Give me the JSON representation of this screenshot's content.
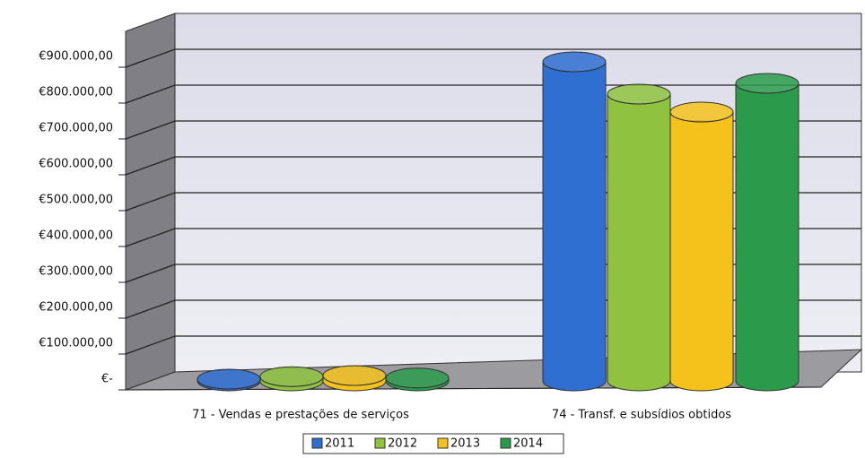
{
  "chart_data": {
    "type": "bar",
    "categories": [
      "71 - Vendas e prestações de serviços",
      "74 - Transf. e subsídios obtidos"
    ],
    "series": [
      {
        "name": "2011",
        "color": "#2f6fd1",
        "values": [
          5000,
          890000
        ]
      },
      {
        "name": "2012",
        "color": "#8fc23f",
        "values": [
          12000,
          800000
        ]
      },
      {
        "name": "2013",
        "color": "#f5c21c",
        "values": [
          15000,
          750000
        ]
      },
      {
        "name": "2014",
        "color": "#2b9b4b",
        "values": [
          8000,
          830000
        ]
      }
    ],
    "ylim": [
      0,
      1000000
    ],
    "yticks": [
      {
        "value": 0,
        "label": "€-"
      },
      {
        "value": 100000,
        "label": "€100.000,00"
      },
      {
        "value": 200000,
        "label": "€200.000,00"
      },
      {
        "value": 300000,
        "label": "€300.000,00"
      },
      {
        "value": 400000,
        "label": "€400.000,00"
      },
      {
        "value": 500000,
        "label": "€500.000,00"
      },
      {
        "value": 600000,
        "label": "€600.000,00"
      },
      {
        "value": 700000,
        "label": "€700.000,00"
      },
      {
        "value": 800000,
        "label": "€800.000,00"
      },
      {
        "value": 900000,
        "label": "€900.000,00"
      }
    ],
    "grid": true,
    "legend": "bottom"
  }
}
